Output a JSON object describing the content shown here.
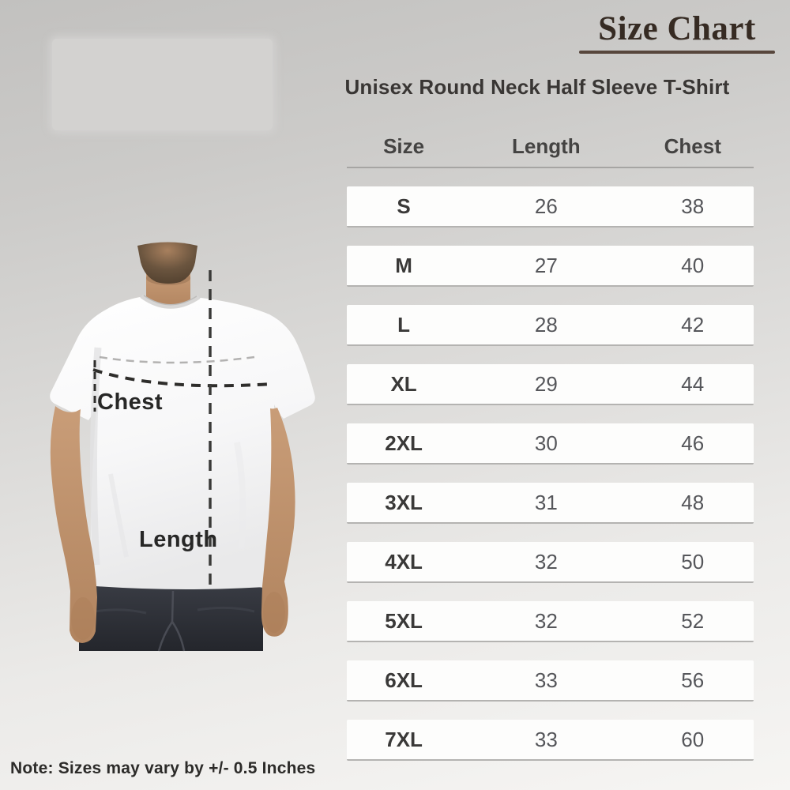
{
  "title": "Size Chart",
  "subtitle": "Unisex Round Neck Half Sleeve T-Shirt",
  "note": "Note: Sizes may vary by +/- 0.5 Inches",
  "figure": {
    "chest_label": "Chest",
    "length_label": "Length"
  },
  "chart_data": {
    "type": "table",
    "title": "Size Chart",
    "subtitle": "Unisex Round Neck Half Sleeve T-Shirt",
    "columns": [
      "Size",
      "Length",
      "Chest"
    ],
    "rows": [
      [
        "S",
        "26",
        "38"
      ],
      [
        "M",
        "27",
        "40"
      ],
      [
        "L",
        "28",
        "42"
      ],
      [
        "XL",
        "29",
        "44"
      ],
      [
        "2XL",
        "30",
        "46"
      ],
      [
        "3XL",
        "31",
        "48"
      ],
      [
        "4XL",
        "32",
        "50"
      ],
      [
        "5XL",
        "32",
        "52"
      ],
      [
        "6XL",
        "33",
        "56"
      ],
      [
        "7XL",
        "33",
        "60"
      ]
    ],
    "footnote": "Note: Sizes may vary by +/- 0.5 Inches"
  },
  "colors": {
    "title_text": "#362b23",
    "title_underline": "#57463c",
    "subtitle_text": "#393634",
    "header_text": "#444342",
    "size_text": "#3a3938",
    "value_text": "#55565a",
    "row_background": "#fdfdfc",
    "row_divider": "#b4b3b1",
    "background_top": "#c2c1bf",
    "background_bottom": "#f6f5f3",
    "jeans": "#33363d",
    "skin": "#c59a76"
  }
}
